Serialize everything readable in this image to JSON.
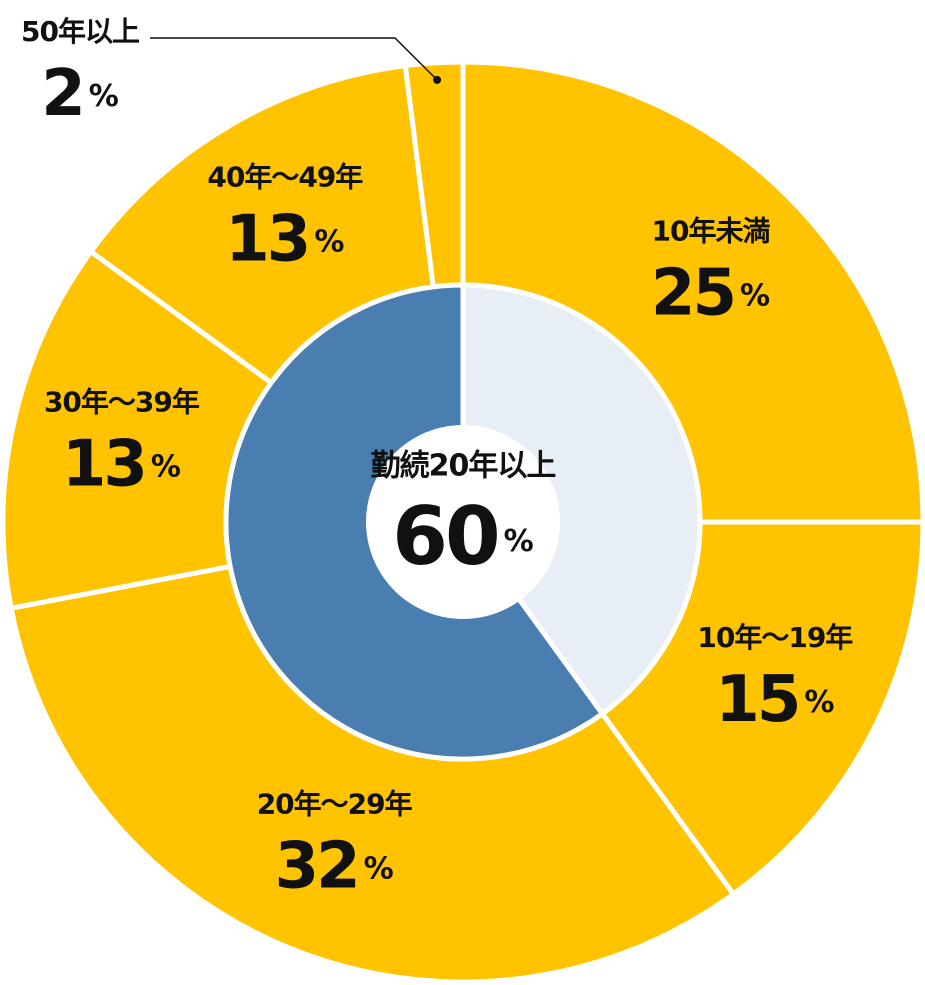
{
  "chart_data": [
    {
      "type": "donut",
      "categories": [
        "10年未満",
        "10年～19年",
        "20年～29年",
        "30年～39年",
        "40年～49年",
        "50年以上"
      ],
      "values": [
        25,
        15,
        32,
        13,
        13,
        2
      ],
      "value_labels": [
        "25%",
        "15%",
        "32%",
        "13%",
        "13%",
        "2%"
      ],
      "color": "#FFC300"
    },
    {
      "type": "donut",
      "categories": [
        null,
        "勤続20年以上"
      ],
      "values": [
        40,
        60
      ],
      "value_labels": [
        null,
        "60%"
      ],
      "colors": [
        "#E8EEF6",
        "#4A7DB0"
      ]
    }
  ]
}
